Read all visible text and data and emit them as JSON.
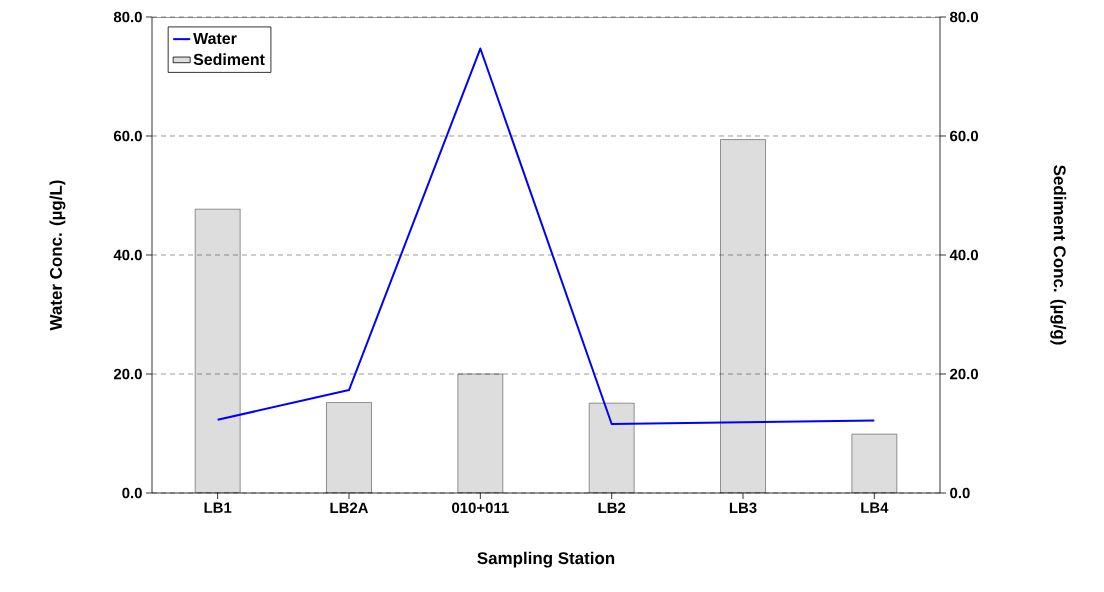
{
  "chart_data": {
    "type": "bar",
    "xlabel": "Sampling Station",
    "ylabel": "Water Conc. (µg/L)",
    "y2label": "Sediment Conc. (µg/g)",
    "categories": [
      "LB1",
      "LB2A",
      "010+011",
      "LB2",
      "LB3",
      "LB4"
    ],
    "series": [
      {
        "name": "Water",
        "type": "line",
        "color": "#0000ff",
        "values": [
          12.3,
          17.3,
          74.7,
          11.6,
          11.9,
          12.2
        ]
      },
      {
        "name": "Sediment",
        "axis": "y2",
        "color": "#dddddd",
        "values": [
          47.7,
          15.2,
          20.0,
          15.1,
          59.4,
          9.9
        ]
      }
    ],
    "ylim": [
      0,
      80
    ],
    "yticks": [
      {
        "value": 0,
        "label": "0.0"
      },
      {
        "value": 20,
        "label": "20.0"
      },
      {
        "value": 40,
        "label": "40.0"
      },
      {
        "value": 60,
        "label": "60.0"
      },
      {
        "value": 80,
        "label": "80.0"
      }
    ],
    "y2lim": [
      0,
      80
    ],
    "y2ticks": [
      {
        "value": 0,
        "label": "0.0"
      },
      {
        "value": 20,
        "label": "20.0"
      },
      {
        "value": 40,
        "label": "40.0"
      },
      {
        "value": 60,
        "label": "60.0"
      },
      {
        "value": 80,
        "label": "80.0"
      }
    ],
    "grid": "y",
    "legend": "top left",
    "marker": "none",
    "line_style": "solid"
  }
}
